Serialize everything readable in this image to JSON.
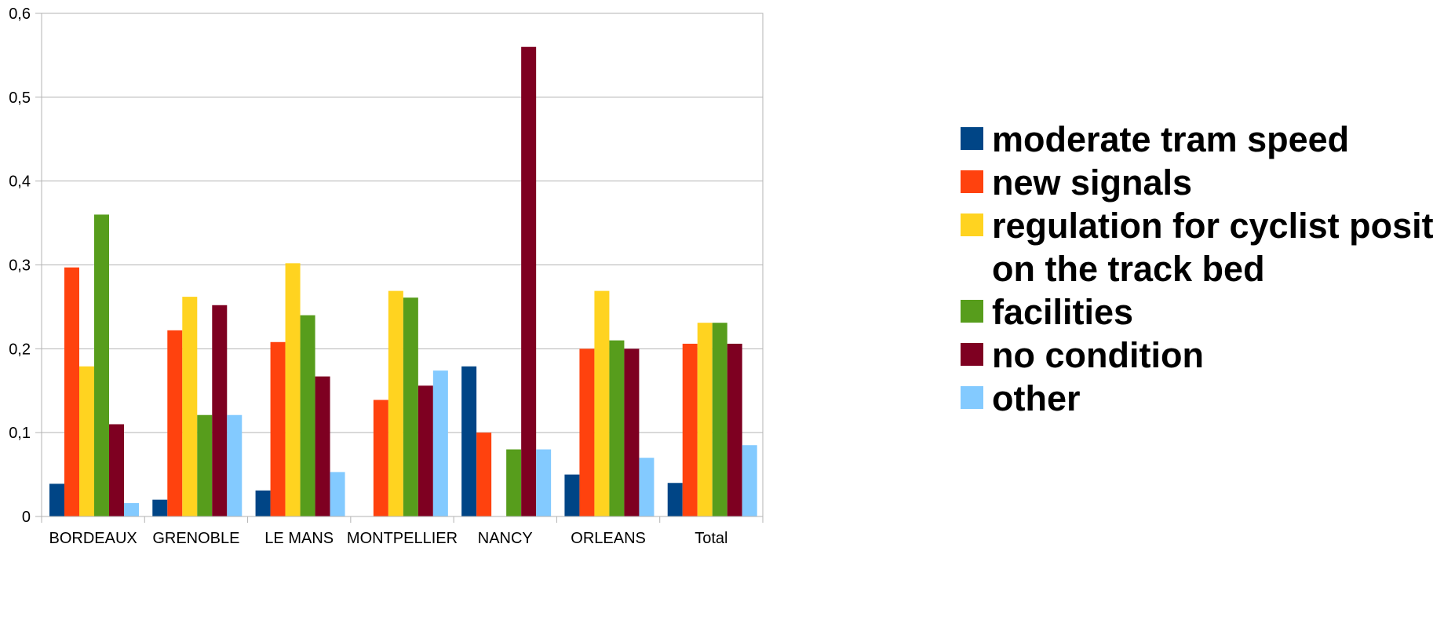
{
  "chart_data": {
    "type": "bar",
    "categories": [
      "BORDEAUX",
      "GRENOBLE",
      "LE MANS",
      "MONTPELLIER",
      "NANCY",
      "ORLEANS",
      "Total"
    ],
    "series": [
      {
        "name": "moderate tram speed",
        "color": "#004586",
        "values": [
          0.039,
          0.02,
          0.031,
          0,
          0.179,
          0.05,
          0.04
        ]
      },
      {
        "name": "new signals",
        "color": "#ff420e",
        "values": [
          0.297,
          0.222,
          0.208,
          0.139,
          0.1,
          0.2,
          0.206
        ]
      },
      {
        "name": "regulation for cyclist position on the track bed",
        "legend_lines": [
          "regulation for cyclist position",
          "on the track bed"
        ],
        "color": "#ffd320",
        "values": [
          0.179,
          0.262,
          0.302,
          0.269,
          0,
          0.269,
          0.231
        ]
      },
      {
        "name": "facilities",
        "color": "#579d1c",
        "values": [
          0.36,
          0.121,
          0.24,
          0.261,
          0.08,
          0.21,
          0.231
        ]
      },
      {
        "name": "no condition",
        "color": "#7e0021",
        "values": [
          0.11,
          0.252,
          0.167,
          0.156,
          0.56,
          0.2,
          0.206
        ]
      },
      {
        "name": "other",
        "color": "#83caff",
        "values": [
          0.016,
          0.121,
          0.053,
          0.174,
          0.08,
          0.07,
          0.085
        ]
      }
    ],
    "ylim": [
      0,
      0.6
    ],
    "yticks": [
      "0",
      "0,1",
      "0,2",
      "0,3",
      "0,4",
      "0,5",
      "0,6"
    ],
    "grid": true,
    "legend_position": "right",
    "title": "",
    "xlabel": "",
    "ylabel": ""
  }
}
